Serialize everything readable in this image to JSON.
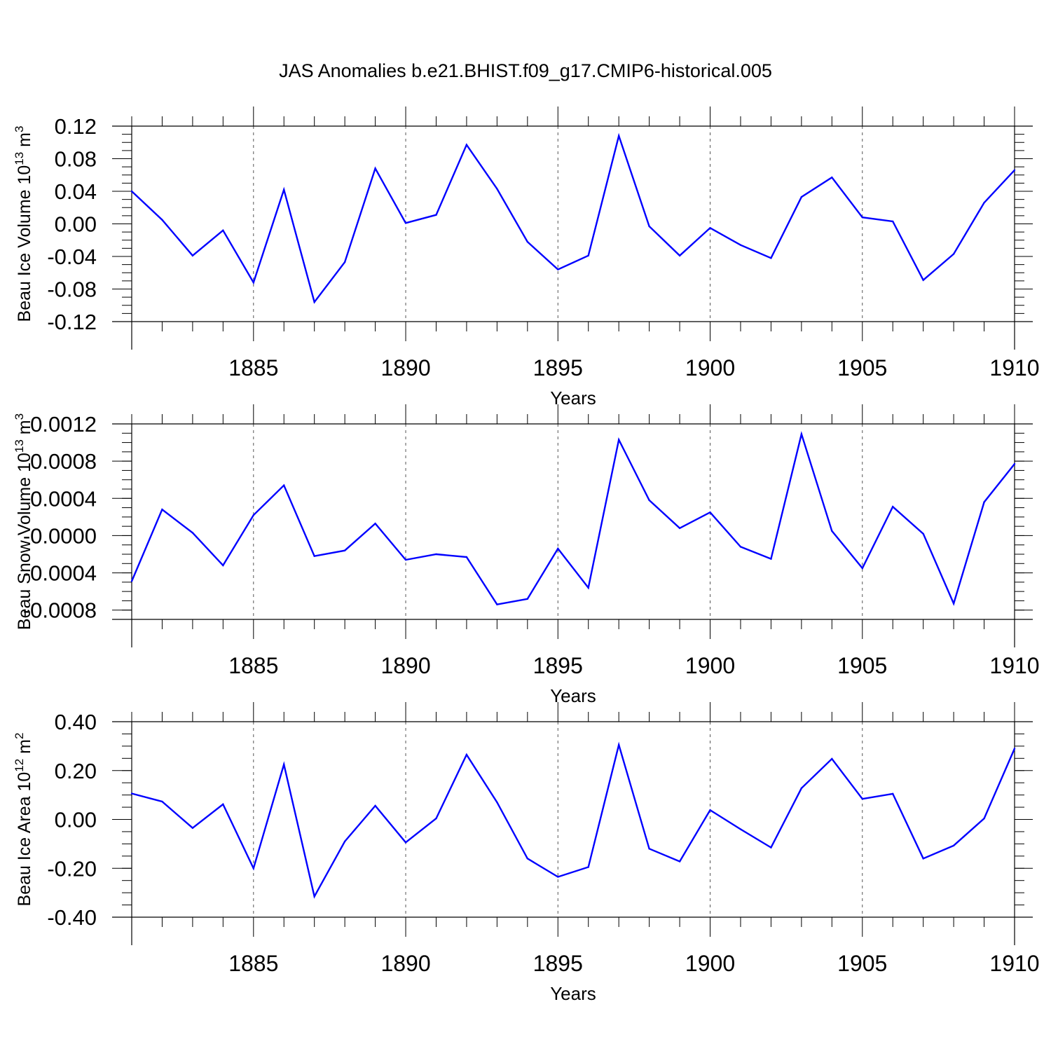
{
  "title": "JAS Anomalies b.e21.BHIST.f09_g17.CMIP6-historical.005",
  "colors": {
    "line": "#0000ff",
    "axis": "#000000",
    "grid": "#555555"
  },
  "chart_data": [
    {
      "type": "line",
      "title": "",
      "xlabel": "Years",
      "ylabel_main": "Beau Ice Volume 10",
      "ylabel_exp": "13",
      "ylabel_unit": " m",
      "ylabel_unit_exp": "3",
      "xlim": [
        1881,
        1910
      ],
      "ylim": [
        -0.12,
        0.12
      ],
      "xticks": [
        1885,
        1890,
        1895,
        1900,
        1905,
        1910
      ],
      "yticks": [
        0.12,
        0.08,
        0.04,
        0.0,
        -0.04,
        -0.08,
        -0.12
      ],
      "ytick_labels": [
        "0.12",
        "0.08",
        "0.04",
        "0.00",
        "-0.04",
        "-0.08",
        "-0.12"
      ],
      "grid": "vertical dashed at major x ticks",
      "series": [
        {
          "name": "Beau Ice Volume",
          "x": [
            1881,
            1882,
            1883,
            1884,
            1885,
            1886,
            1887,
            1888,
            1889,
            1890,
            1891,
            1892,
            1893,
            1894,
            1895,
            1896,
            1897,
            1898,
            1899,
            1900,
            1901,
            1902,
            1903,
            1904,
            1905,
            1906,
            1907,
            1908,
            1909,
            1910
          ],
          "y": [
            0.04,
            0.005,
            -0.039,
            -0.008,
            -0.072,
            0.042,
            -0.096,
            -0.047,
            0.068,
            0.001,
            0.011,
            0.097,
            0.043,
            -0.022,
            -0.056,
            -0.039,
            0.108,
            -0.003,
            -0.039,
            -0.005,
            -0.026,
            -0.042,
            0.033,
            0.057,
            0.008,
            0.003,
            -0.069,
            -0.037,
            0.026,
            0.066
          ]
        }
      ]
    },
    {
      "type": "line",
      "title": "",
      "xlabel": "Years",
      "ylabel_main": "Beau Snow Volume 10",
      "ylabel_exp": "13",
      "ylabel_unit": " m",
      "ylabel_unit_exp": "3",
      "xlim": [
        1881,
        1910
      ],
      "ylim": [
        -0.0009,
        0.0012
      ],
      "xticks": [
        1885,
        1890,
        1895,
        1900,
        1905,
        1910
      ],
      "yticks": [
        0.0012,
        0.0008,
        0.0004,
        0.0,
        -0.0004,
        -0.0008
      ],
      "ytick_labels": [
        "0.0012",
        "0.0008",
        "0.0004",
        "-0.0000",
        "-0.0004",
        "-0.0008"
      ],
      "grid": "vertical dashed at major x ticks",
      "series": [
        {
          "name": "Beau Snow Volume",
          "x": [
            1881,
            1882,
            1883,
            1884,
            1885,
            1886,
            1887,
            1888,
            1889,
            1890,
            1891,
            1892,
            1893,
            1894,
            1895,
            1896,
            1897,
            1898,
            1899,
            1900,
            1901,
            1902,
            1903,
            1904,
            1905,
            1906,
            1907,
            1908,
            1909,
            1910
          ],
          "y": [
            -0.00049,
            0.00028,
            3e-05,
            -0.00032,
            0.00022,
            0.00054,
            -0.00022,
            -0.00016,
            0.00013,
            -0.00026,
            -0.0002,
            -0.00023,
            -0.00074,
            -0.00068,
            -0.00014,
            -0.00056,
            0.00103,
            0.00038,
            8e-05,
            0.00025,
            -0.00012,
            -0.00025,
            0.00109,
            5e-05,
            -0.00035,
            0.00031,
            2e-05,
            -0.00073,
            0.00036,
            0.00077
          ]
        }
      ]
    },
    {
      "type": "line",
      "title": "",
      "xlabel": "Years",
      "ylabel_main": "Beau Ice Area 10",
      "ylabel_exp": "12",
      "ylabel_unit": " m",
      "ylabel_unit_exp": "2",
      "xlim": [
        1881,
        1910
      ],
      "ylim": [
        -0.4,
        0.4
      ],
      "xticks": [
        1885,
        1890,
        1895,
        1900,
        1905,
        1910
      ],
      "yticks": [
        0.4,
        0.2,
        0.0,
        -0.2,
        -0.4
      ],
      "ytick_labels": [
        "0.40",
        "0.20",
        "0.00",
        "-0.20",
        "-0.40"
      ],
      "grid": "vertical dashed at major x ticks",
      "series": [
        {
          "name": "Beau Ice Area",
          "x": [
            1881,
            1882,
            1883,
            1884,
            1885,
            1886,
            1887,
            1888,
            1889,
            1890,
            1891,
            1892,
            1893,
            1894,
            1895,
            1896,
            1897,
            1898,
            1899,
            1900,
            1901,
            1902,
            1903,
            1904,
            1905,
            1906,
            1907,
            1908,
            1909,
            1910
          ],
          "y": [
            0.106,
            0.073,
            -0.035,
            0.062,
            -0.2,
            0.225,
            -0.315,
            -0.09,
            0.056,
            -0.094,
            0.004,
            0.265,
            0.07,
            -0.16,
            -0.235,
            -0.195,
            0.305,
            -0.12,
            -0.172,
            0.038,
            -0.04,
            -0.115,
            0.128,
            0.248,
            0.084,
            0.105,
            -0.16,
            -0.107,
            0.004,
            0.29
          ]
        }
      ]
    }
  ]
}
